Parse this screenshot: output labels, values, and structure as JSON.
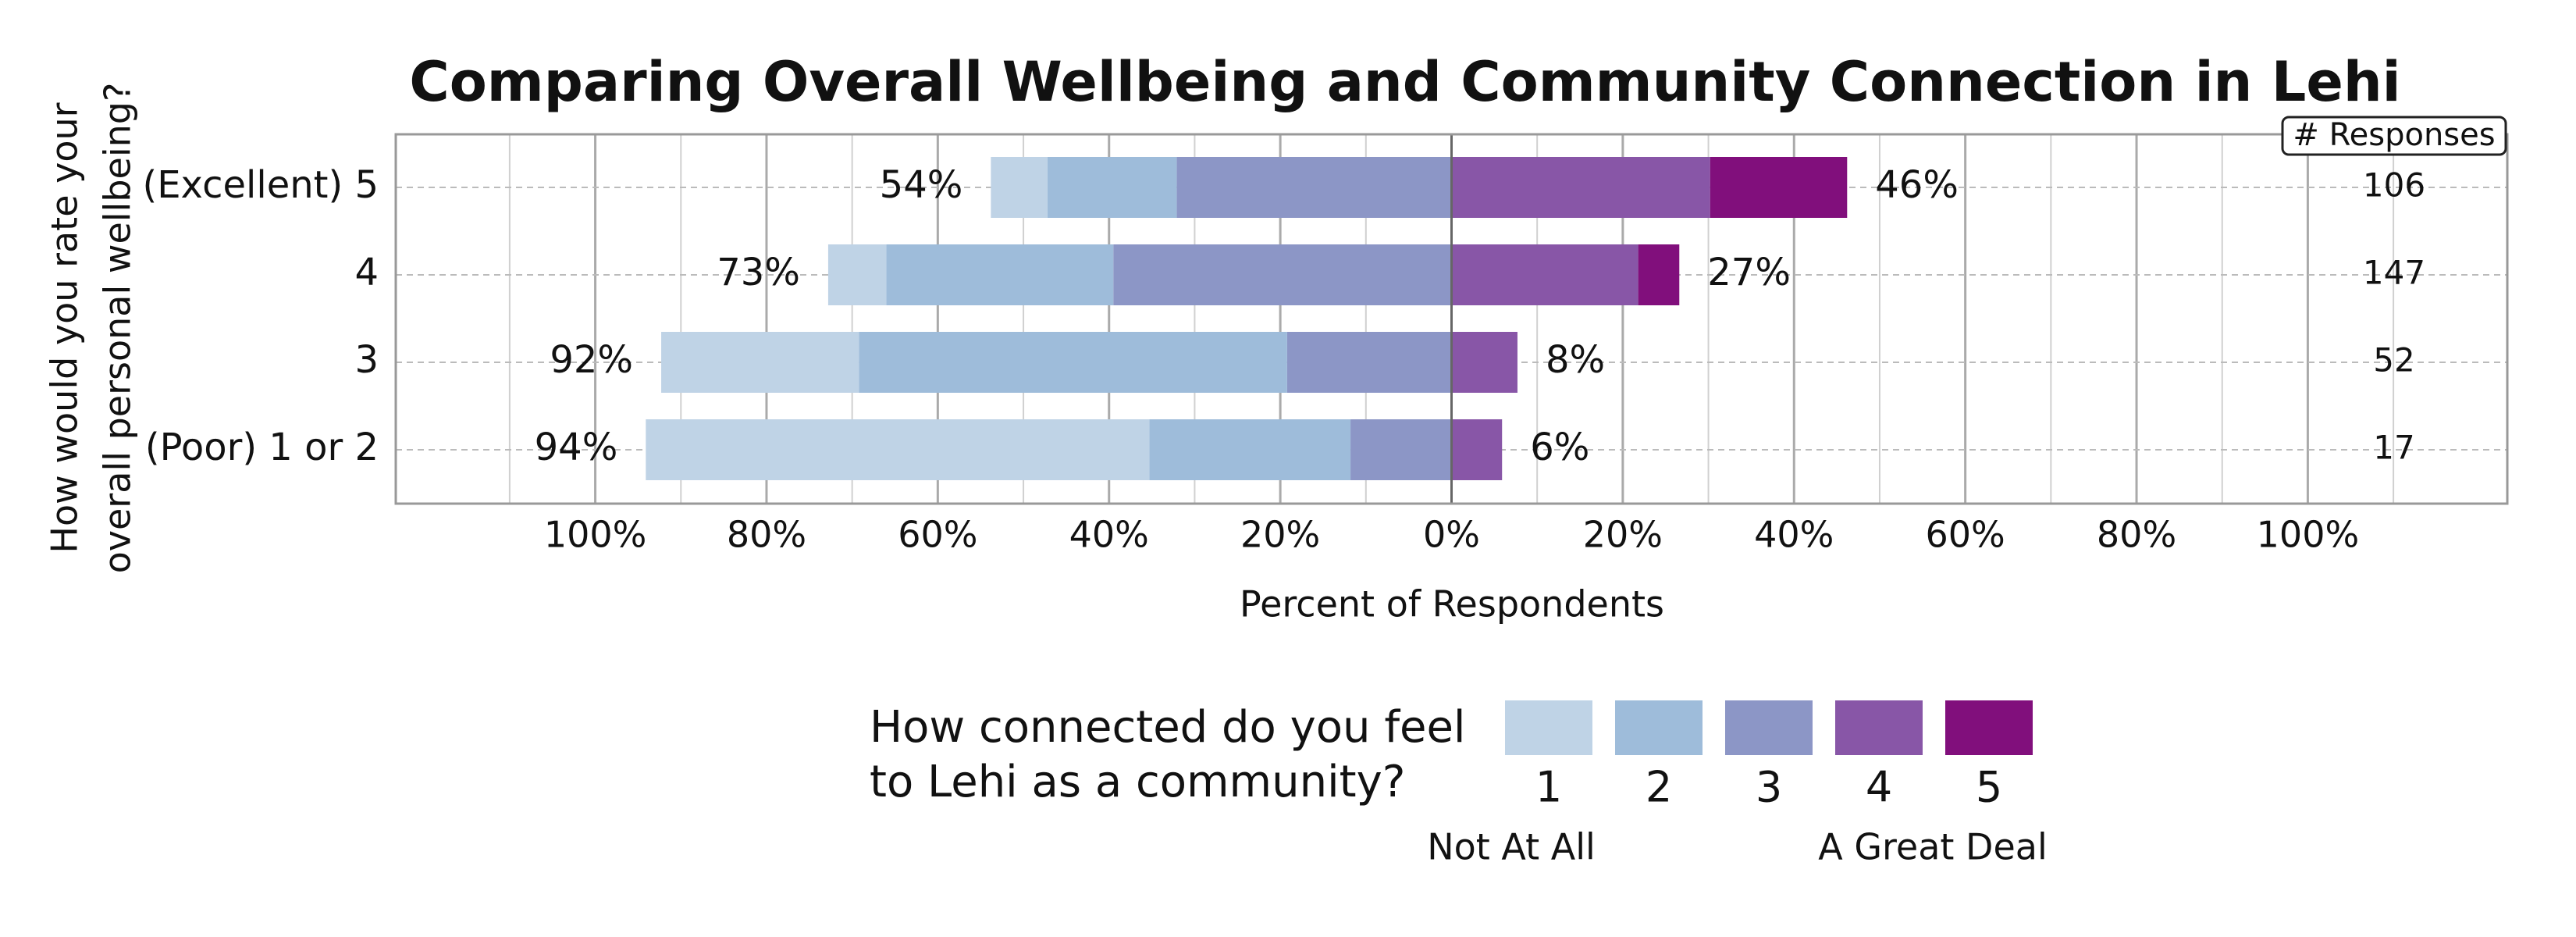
{
  "chart_data": {
    "type": "diverging_bar",
    "title": "Comparing Overall Wellbeing and Community Connection in Lehi",
    "categories": [
      "(Excellent) 5",
      "4",
      "3",
      "(Poor) 1 or 2"
    ],
    "series": [
      {
        "name": "1",
        "color": "#bfd3e6",
        "side": "left",
        "values": [
          6.6,
          6.8,
          23.1,
          58.8
        ]
      },
      {
        "name": "2",
        "color": "#9ebcda",
        "side": "left",
        "values": [
          15.1,
          26.5,
          50.0,
          23.5
        ]
      },
      {
        "name": "3",
        "color": "#8c96c6",
        "side": "left",
        "values": [
          32.1,
          39.5,
          19.2,
          11.8
        ]
      },
      {
        "name": "4",
        "color": "#8856a7",
        "side": "right",
        "values": [
          30.2,
          21.8,
          7.7,
          5.9
        ]
      },
      {
        "name": "5",
        "color": "#810f7c",
        "side": "right",
        "values": [
          16.0,
          4.8,
          0,
          0
        ]
      }
    ],
    "left_totals": {
      "values": [
        54,
        73,
        92,
        94
      ],
      "value_labels": [
        "54%",
        "73%",
        "92%",
        "94%"
      ]
    },
    "right_totals": {
      "values": [
        46,
        27,
        8,
        6
      ],
      "value_labels": [
        "46%",
        "27%",
        "8%",
        "6%"
      ]
    },
    "responses_title": "# Responses",
    "responses": [
      106,
      147,
      52,
      17
    ],
    "xlabel": "Percent of Respondents",
    "ylabel": [
      "How would you rate your",
      "overall personal wellbeing?"
    ],
    "xlim": [
      -123.3,
      123.3
    ],
    "xticks": [
      {
        "value": -100,
        "label": "100%"
      },
      {
        "value": -80,
        "label": "80%"
      },
      {
        "value": -60,
        "label": "60%"
      },
      {
        "value": -40,
        "label": "40%"
      },
      {
        "value": -20,
        "label": "20%"
      },
      {
        "value": 0,
        "label": "0%"
      },
      {
        "value": 20,
        "label": "20%"
      },
      {
        "value": 40,
        "label": "40%"
      },
      {
        "value": 60,
        "label": "60%"
      },
      {
        "value": 80,
        "label": "80%"
      },
      {
        "value": 100,
        "label": "100%"
      }
    ],
    "xminorticks": [
      -110,
      -90,
      -70,
      -50,
      -30,
      -10,
      10,
      30,
      50,
      70,
      90,
      110
    ],
    "grid": true,
    "legend_title": [
      "How connected do you feel",
      "to Lehi as a community?"
    ],
    "legend_low": "Not At All",
    "legend_high": "A Great Deal"
  }
}
